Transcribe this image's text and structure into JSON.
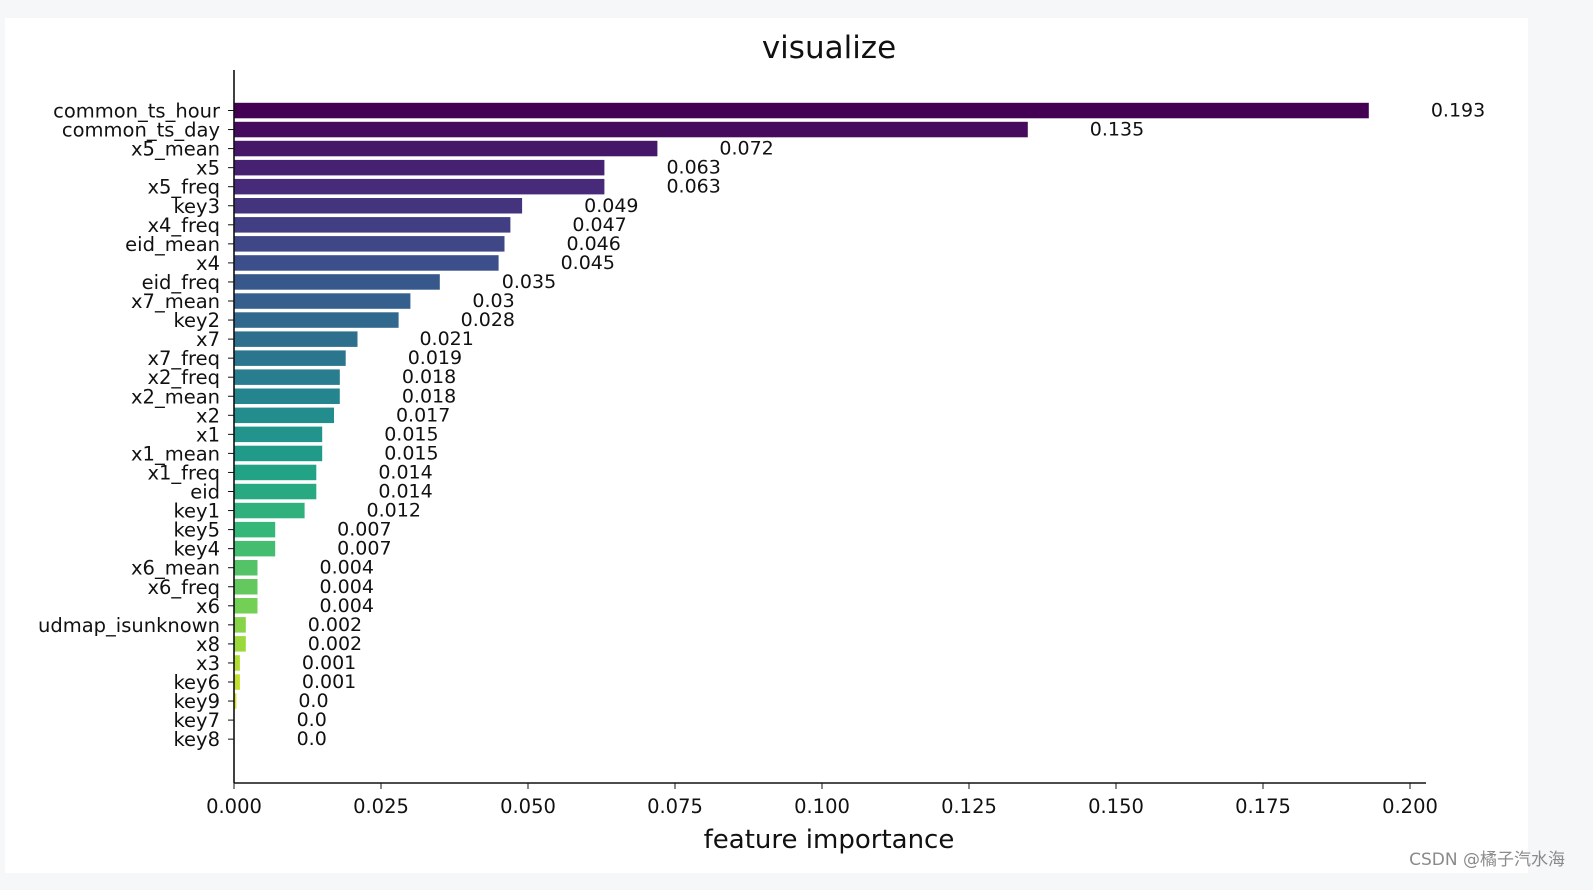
{
  "chart_data": {
    "type": "bar",
    "orientation": "horizontal",
    "title": "visualize",
    "xlabel": "feature importance",
    "ylabel": "",
    "xlim": [
      0,
      0.2025
    ],
    "xticks": [
      "0.000",
      "0.025",
      "0.050",
      "0.075",
      "0.100",
      "0.125",
      "0.150",
      "0.175",
      "0.200"
    ],
    "colormap": "viridis",
    "categories": [
      "common_ts_hour",
      "common_ts_day",
      "x5_mean",
      "x5",
      "x5_freq",
      "key3",
      "x4_freq",
      "eid_mean",
      "x4",
      "eid_freq",
      "x7_mean",
      "key2",
      "x7",
      "x7_freq",
      "x2_freq",
      "x2_mean",
      "x2",
      "x1",
      "x1_mean",
      "x1_freq",
      "eid",
      "key1",
      "key5",
      "key4",
      "x6_mean",
      "x6_freq",
      "x6",
      "udmap_isunknown",
      "x8",
      "x3",
      "key6",
      "key9",
      "key7",
      "key8"
    ],
    "values": [
      0.193,
      0.135,
      0.072,
      0.063,
      0.063,
      0.049,
      0.047,
      0.046,
      0.045,
      0.035,
      0.03,
      0.028,
      0.021,
      0.019,
      0.018,
      0.018,
      0.017,
      0.015,
      0.015,
      0.014,
      0.014,
      0.012,
      0.007,
      0.007,
      0.004,
      0.004,
      0.004,
      0.002,
      0.002,
      0.001,
      0.001,
      0.0004,
      0.0,
      0.0
    ],
    "value_labels": [
      "0.193",
      "0.135",
      "0.072",
      "0.063",
      "0.063",
      "0.049",
      "0.047",
      "0.046",
      "0.045",
      "0.035",
      "0.03",
      "0.028",
      "0.021",
      "0.019",
      "0.018",
      "0.018",
      "0.017",
      "0.015",
      "0.015",
      "0.014",
      "0.014",
      "0.012",
      "0.007",
      "0.007",
      "0.004",
      "0.004",
      "0.004",
      "0.002",
      "0.002",
      "0.001",
      "0.001",
      "0.0",
      "0.0",
      "0.0"
    ],
    "spines": [
      "left",
      "bottom"
    ]
  },
  "watermark": "CSDN @橘子汽水海"
}
